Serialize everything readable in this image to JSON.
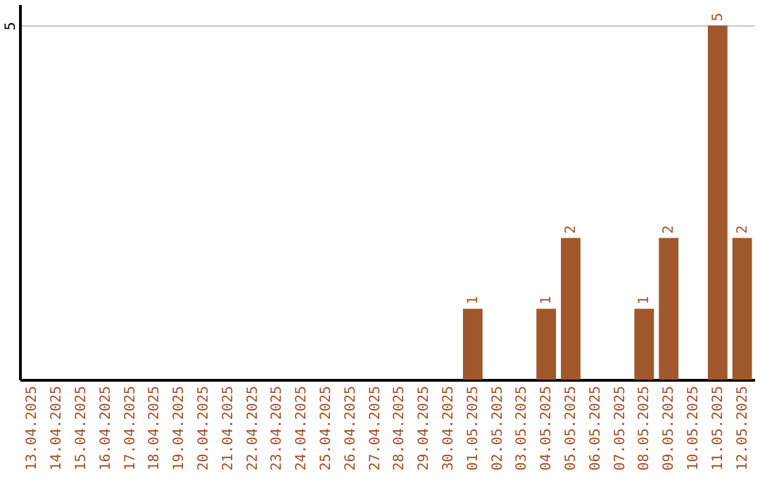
{
  "chart_data": {
    "type": "bar",
    "categories": [
      "13.04.2025",
      "14.04.2025",
      "15.04.2025",
      "16.04.2025",
      "17.04.2025",
      "18.04.2025",
      "19.04.2025",
      "20.04.2025",
      "21.04.2025",
      "22.04.2025",
      "23.04.2025",
      "24.04.2025",
      "25.04.2025",
      "26.04.2025",
      "27.04.2025",
      "28.04.2025",
      "29.04.2025",
      "30.04.2025",
      "01.05.2025",
      "02.05.2025",
      "03.05.2025",
      "04.05.2025",
      "05.05.2025",
      "06.05.2025",
      "07.05.2025",
      "08.05.2025",
      "09.05.2025",
      "10.05.2025",
      "11.05.2025",
      "12.05.2025"
    ],
    "values": [
      null,
      null,
      null,
      null,
      null,
      null,
      null,
      null,
      null,
      null,
      null,
      null,
      null,
      null,
      null,
      null,
      null,
      null,
      1,
      null,
      null,
      1,
      2,
      null,
      null,
      1,
      2,
      null,
      5,
      2
    ],
    "data_labels": true,
    "color": "#a0572b",
    "ylim": [
      0,
      5.3
    ],
    "yticks": [
      5
    ],
    "grid": "y"
  }
}
